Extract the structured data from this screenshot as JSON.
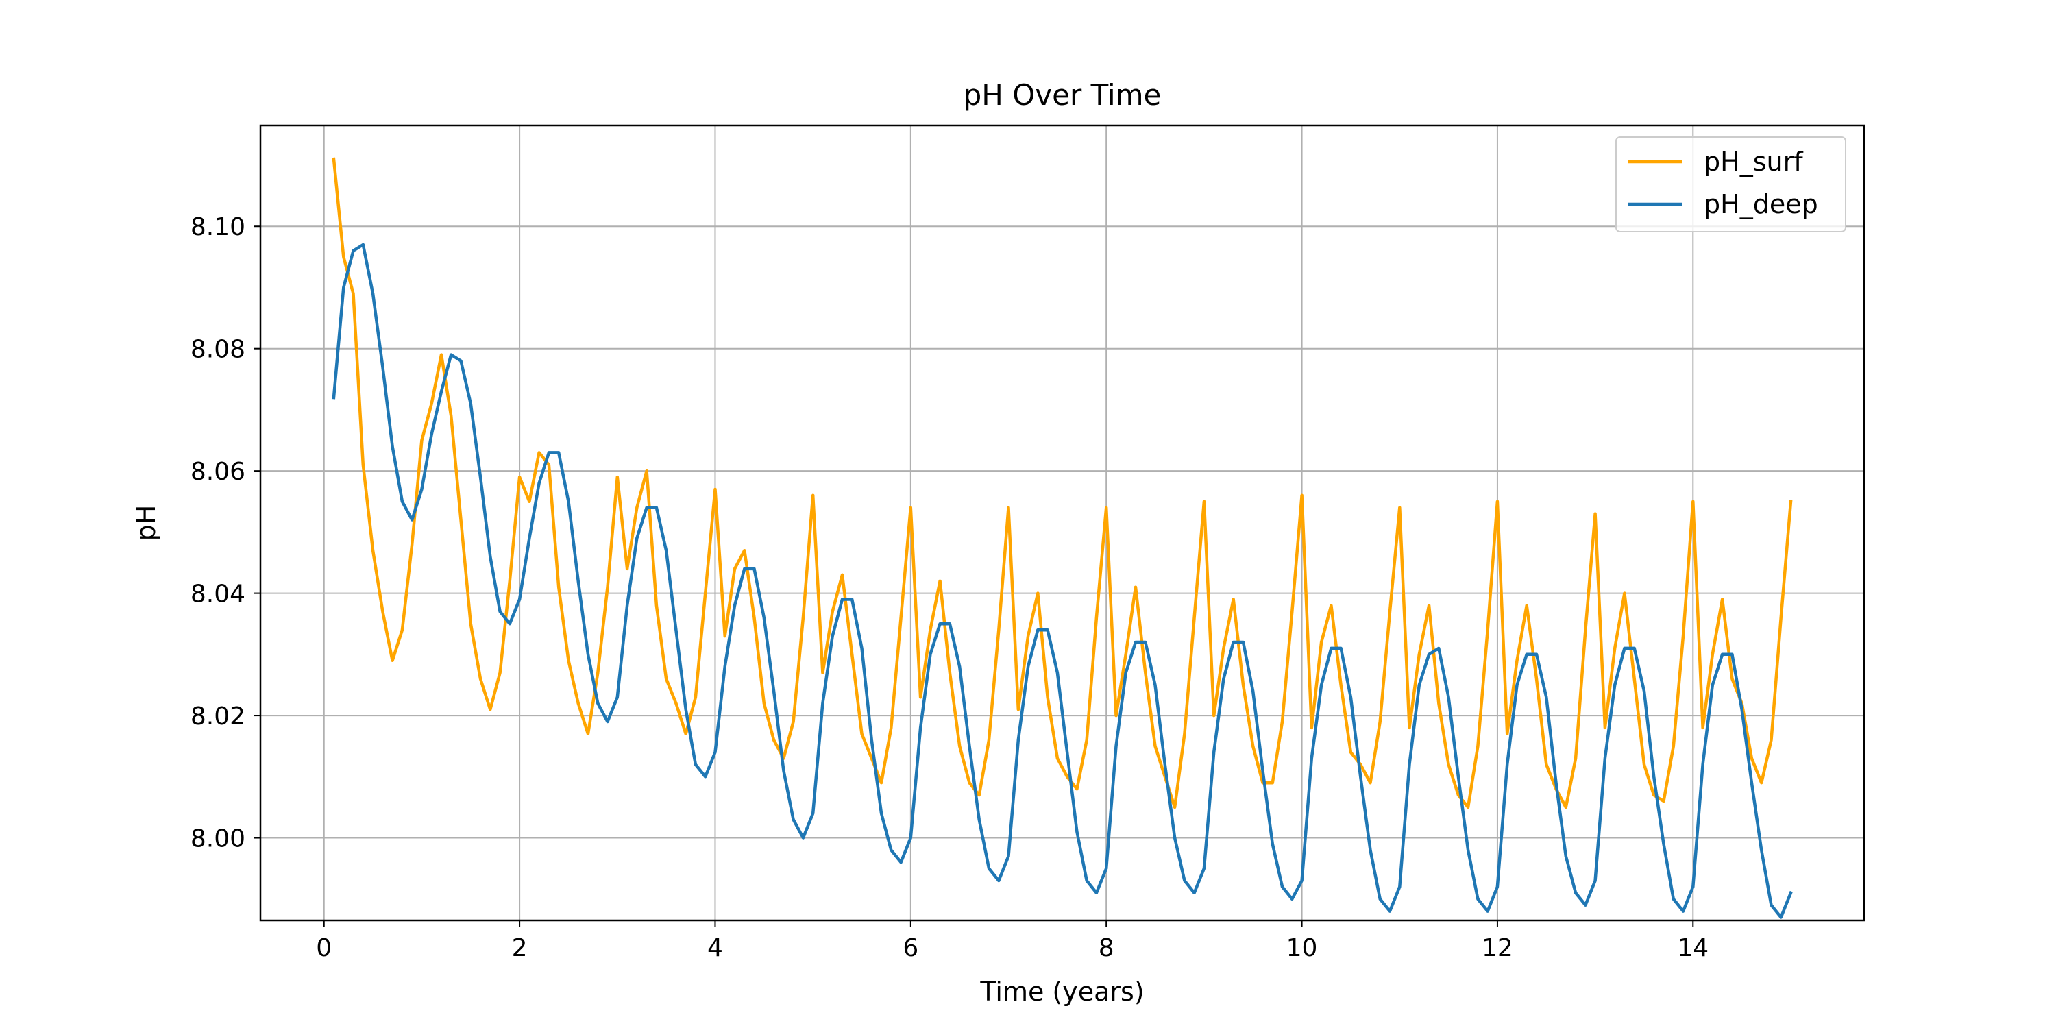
{
  "chart_data": {
    "type": "line",
    "title": "pH Over Time",
    "xlabel": "Time (years)",
    "ylabel": "pH",
    "xlim": [
      -0.65,
      15.75
    ],
    "ylim": [
      7.9865,
      8.1165
    ],
    "xticks": [
      0,
      2,
      4,
      6,
      8,
      10,
      12,
      14
    ],
    "xtick_labels": [
      "0",
      "2",
      "4",
      "6",
      "8",
      "10",
      "12",
      "14"
    ],
    "yticks": [
      8.0,
      8.02,
      8.04,
      8.06,
      8.08,
      8.1
    ],
    "ytick_labels": [
      "8.00",
      "8.02",
      "8.04",
      "8.06",
      "8.08",
      "8.10"
    ],
    "grid": true,
    "legend_position": "top-right",
    "series": [
      {
        "name": "pH_surf",
        "color": "#ffa500",
        "x": [
          0.1,
          0.2,
          0.3,
          0.4,
          0.5,
          0.6,
          0.7,
          0.8,
          0.9,
          1.0,
          1.1,
          1.2,
          1.3,
          1.4,
          1.5,
          1.6,
          1.7,
          1.8,
          1.9,
          2.0,
          2.1,
          2.2,
          2.3,
          2.4,
          2.5,
          2.6,
          2.7,
          2.8,
          2.9,
          3.0,
          3.1,
          3.2,
          3.3,
          3.4,
          3.5,
          3.6,
          3.7,
          3.8,
          3.9,
          4.0,
          4.1,
          4.2,
          4.3,
          4.4,
          4.5,
          4.6,
          4.7,
          4.8,
          4.9,
          5.0,
          5.1,
          5.2,
          5.3,
          5.4,
          5.5,
          5.6,
          5.7,
          5.8,
          5.9,
          6.0,
          6.1,
          6.2,
          6.3,
          6.4,
          6.5,
          6.6,
          6.7,
          6.8,
          6.9,
          7.0,
          7.1,
          7.2,
          7.3,
          7.4,
          7.5,
          7.6,
          7.7,
          7.8,
          7.9,
          8.0,
          8.1,
          8.2,
          8.3,
          8.4,
          8.5,
          8.6,
          8.7,
          8.8,
          8.9,
          9.0,
          9.1,
          9.2,
          9.3,
          9.4,
          9.5,
          9.6,
          9.7,
          9.8,
          9.9,
          10.0,
          10.1,
          10.2,
          10.3,
          10.4,
          10.5,
          10.6,
          10.7,
          10.8,
          10.9,
          11.0,
          11.1,
          11.2,
          11.3,
          11.4,
          11.5,
          11.6,
          11.7,
          11.8,
          11.9,
          12.0,
          12.1,
          12.2,
          12.3,
          12.4,
          12.5,
          12.6,
          12.7,
          12.8,
          12.9,
          13.0,
          13.1,
          13.2,
          13.3,
          13.4,
          13.5,
          13.6,
          13.7,
          13.8,
          13.9,
          14.0,
          14.1,
          14.2,
          14.3,
          14.4,
          14.5,
          14.6,
          14.7,
          14.8,
          14.9,
          15.0
        ],
        "y": [
          8.111,
          8.095,
          8.089,
          8.061,
          8.047,
          8.037,
          8.029,
          8.034,
          8.048,
          8.065,
          8.071,
          8.079,
          8.069,
          8.052,
          8.035,
          8.026,
          8.021,
          8.027,
          8.042,
          8.059,
          8.055,
          8.063,
          8.061,
          8.041,
          8.029,
          8.022,
          8.017,
          8.027,
          8.041,
          8.059,
          8.044,
          8.054,
          8.06,
          8.038,
          8.026,
          8.022,
          8.017,
          8.023,
          8.04,
          8.057,
          8.033,
          8.044,
          8.047,
          8.036,
          8.022,
          8.016,
          8.013,
          8.019,
          8.036,
          8.056,
          8.027,
          8.037,
          8.043,
          8.03,
          8.017,
          8.013,
          8.009,
          8.018,
          8.036,
          8.054,
          8.023,
          8.034,
          8.042,
          8.027,
          8.015,
          8.009,
          8.007,
          8.016,
          8.034,
          8.054,
          8.021,
          8.033,
          8.04,
          8.023,
          8.013,
          8.01,
          8.008,
          8.016,
          8.036,
          8.054,
          8.02,
          8.03,
          8.041,
          8.027,
          8.015,
          8.01,
          8.005,
          8.017,
          8.036,
          8.055,
          8.02,
          8.031,
          8.039,
          8.025,
          8.015,
          8.009,
          8.009,
          8.019,
          8.037,
          8.056,
          8.018,
          8.032,
          8.038,
          8.025,
          8.014,
          8.012,
          8.009,
          8.019,
          8.037,
          8.054,
          8.018,
          8.03,
          8.038,
          8.022,
          8.012,
          8.007,
          8.005,
          8.015,
          8.034,
          8.055,
          8.017,
          8.029,
          8.038,
          8.026,
          8.012,
          8.008,
          8.005,
          8.013,
          8.034,
          8.053,
          8.018,
          8.031,
          8.04,
          8.026,
          8.012,
          8.007,
          8.006,
          8.015,
          8.033,
          8.055,
          8.018,
          8.03,
          8.039,
          8.026,
          8.022,
          8.013,
          8.009,
          8.016,
          8.036,
          8.055
        ]
      },
      {
        "name": "pH_deep",
        "color": "#1f77b4",
        "x": [
          0.1,
          0.2,
          0.3,
          0.4,
          0.5,
          0.6,
          0.7,
          0.8,
          0.9,
          1.0,
          1.1,
          1.2,
          1.3,
          1.4,
          1.5,
          1.6,
          1.7,
          1.8,
          1.9,
          2.0,
          2.1,
          2.2,
          2.3,
          2.4,
          2.5,
          2.6,
          2.7,
          2.8,
          2.9,
          3.0,
          3.1,
          3.2,
          3.3,
          3.4,
          3.5,
          3.6,
          3.7,
          3.8,
          3.9,
          4.0,
          4.1,
          4.2,
          4.3,
          4.4,
          4.5,
          4.6,
          4.7,
          4.8,
          4.9,
          5.0,
          5.1,
          5.2,
          5.3,
          5.4,
          5.5,
          5.6,
          5.7,
          5.8,
          5.9,
          6.0,
          6.1,
          6.2,
          6.3,
          6.4,
          6.5,
          6.6,
          6.7,
          6.8,
          6.9,
          7.0,
          7.1,
          7.2,
          7.3,
          7.4,
          7.5,
          7.6,
          7.7,
          7.8,
          7.9,
          8.0,
          8.1,
          8.2,
          8.3,
          8.4,
          8.5,
          8.6,
          8.7,
          8.8,
          8.9,
          9.0,
          9.1,
          9.2,
          9.3,
          9.4,
          9.5,
          9.6,
          9.7,
          9.8,
          9.9,
          10.0,
          10.1,
          10.2,
          10.3,
          10.4,
          10.5,
          10.6,
          10.7,
          10.8,
          10.9,
          11.0,
          11.1,
          11.2,
          11.3,
          11.4,
          11.5,
          11.6,
          11.7,
          11.8,
          11.9,
          12.0,
          12.1,
          12.2,
          12.3,
          12.4,
          12.5,
          12.6,
          12.7,
          12.8,
          12.9,
          13.0,
          13.1,
          13.2,
          13.3,
          13.4,
          13.5,
          13.6,
          13.7,
          13.8,
          13.9,
          14.0,
          14.1,
          14.2,
          14.3,
          14.4,
          14.5,
          14.6,
          14.7,
          14.8,
          14.9,
          15.0
        ],
        "y": [
          8.072,
          8.09,
          8.096,
          8.097,
          8.089,
          8.077,
          8.064,
          8.055,
          8.052,
          8.057,
          8.066,
          8.073,
          8.079,
          8.078,
          8.071,
          8.059,
          8.046,
          8.037,
          8.035,
          8.039,
          8.049,
          8.058,
          8.063,
          8.063,
          8.055,
          8.042,
          8.03,
          8.022,
          8.019,
          8.023,
          8.038,
          8.049,
          8.054,
          8.054,
          8.047,
          8.034,
          8.021,
          8.012,
          8.01,
          8.014,
          8.028,
          8.038,
          8.044,
          8.044,
          8.036,
          8.024,
          8.011,
          8.003,
          8.0,
          8.004,
          8.022,
          8.033,
          8.039,
          8.039,
          8.031,
          8.016,
          8.004,
          7.998,
          7.996,
          8.0,
          8.018,
          8.03,
          8.035,
          8.035,
          8.028,
          8.015,
          8.003,
          7.995,
          7.993,
          7.997,
          8.016,
          8.028,
          8.034,
          8.034,
          8.027,
          8.014,
          8.001,
          7.993,
          7.991,
          7.995,
          8.015,
          8.027,
          8.032,
          8.032,
          8.025,
          8.012,
          8.0,
          7.993,
          7.991,
          7.995,
          8.014,
          8.026,
          8.032,
          8.032,
          8.024,
          8.011,
          7.999,
          7.992,
          7.99,
          7.993,
          8.013,
          8.025,
          8.031,
          8.031,
          8.023,
          8.01,
          7.998,
          7.99,
          7.988,
          7.992,
          8.012,
          8.025,
          8.03,
          8.031,
          8.023,
          8.01,
          7.998,
          7.99,
          7.988,
          7.992,
          8.012,
          8.025,
          8.03,
          8.03,
          8.023,
          8.009,
          7.997,
          7.991,
          7.989,
          7.993,
          8.013,
          8.025,
          8.031,
          8.031,
          8.024,
          8.01,
          7.999,
          7.99,
          7.988,
          7.992,
          8.012,
          8.025,
          8.03,
          8.03,
          8.021,
          8.009,
          7.998,
          7.989,
          7.987,
          7.991
        ]
      }
    ]
  }
}
